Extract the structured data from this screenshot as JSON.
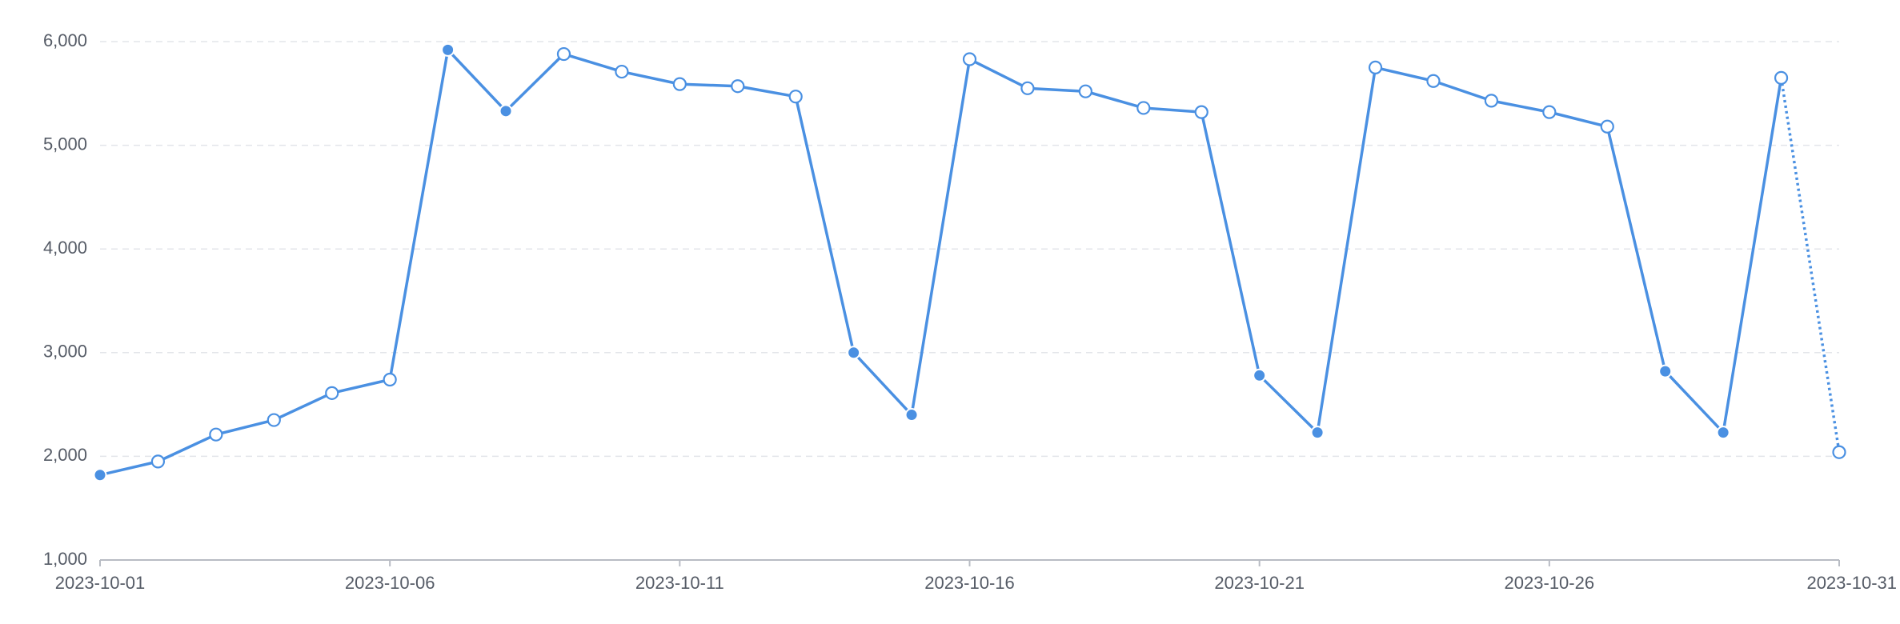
{
  "chart_data": {
    "type": "line",
    "title": "",
    "xlabel": "",
    "ylabel": "",
    "x": [
      "2023-10-01",
      "2023-10-02",
      "2023-10-03",
      "2023-10-04",
      "2023-10-05",
      "2023-10-06",
      "2023-10-07",
      "2023-10-08",
      "2023-10-09",
      "2023-10-10",
      "2023-10-11",
      "2023-10-12",
      "2023-10-13",
      "2023-10-14",
      "2023-10-15",
      "2023-10-16",
      "2023-10-17",
      "2023-10-18",
      "2023-10-19",
      "2023-10-20",
      "2023-10-21",
      "2023-10-22",
      "2023-10-23",
      "2023-10-24",
      "2023-10-25",
      "2023-10-26",
      "2023-10-27",
      "2023-10-28",
      "2023-10-29",
      "2023-10-30",
      "2023-10-31"
    ],
    "series": [
      {
        "values": [
          1820,
          1950,
          2210,
          2350,
          2610,
          2740,
          5920,
          5330,
          5880,
          5710,
          5590,
          5570,
          5470,
          3000,
          2400,
          5830,
          5550,
          5520,
          5360,
          5320,
          2780,
          2230,
          5750,
          5620,
          5430,
          5320,
          5180,
          2820,
          2230,
          5650,
          2040
        ],
        "weekend": [
          true,
          false,
          false,
          false,
          false,
          false,
          true,
          true,
          false,
          false,
          false,
          false,
          false,
          true,
          true,
          false,
          false,
          false,
          false,
          false,
          true,
          true,
          false,
          false,
          false,
          false,
          false,
          true,
          true,
          false,
          false
        ],
        "incomplete_last": true,
        "color": "#4a90e2"
      }
    ],
    "xticks": [
      "2023-10-01",
      "2023-10-06",
      "2023-10-11",
      "2023-10-16",
      "2023-10-21",
      "2023-10-26",
      "2023-10-31"
    ],
    "yticks": [
      1000,
      2000,
      3000,
      4000,
      5000,
      6000
    ],
    "ytick_labels": [
      "1,000",
      "2,000",
      "3,000",
      "4,000",
      "5,000",
      "6,000"
    ],
    "ylim": [
      1000,
      6000
    ],
    "grid": true,
    "legend": "none"
  }
}
